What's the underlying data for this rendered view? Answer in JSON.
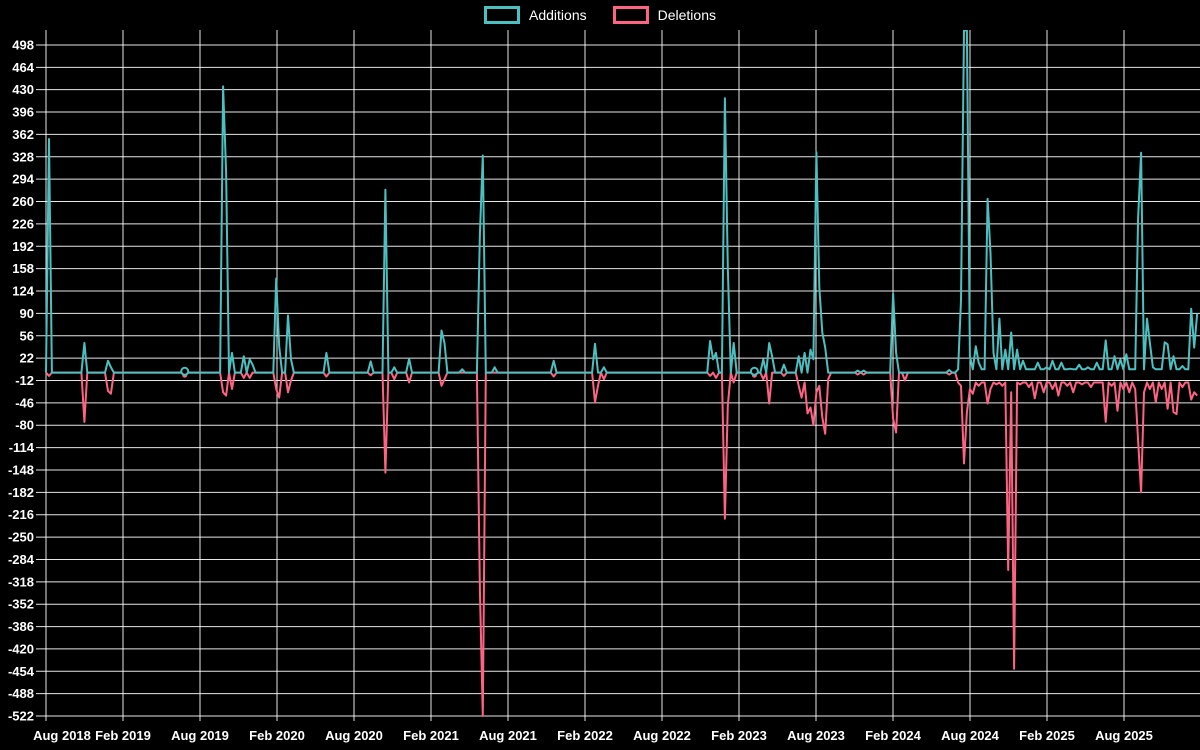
{
  "chart_data": {
    "type": "line",
    "title": "",
    "background_color": "#000000",
    "grid_color": "#ffffff",
    "text_color": "#ffffff",
    "grid": true,
    "legend_position": "top",
    "x_unit": "week",
    "weeks_total": 391,
    "x_range_label": "Aug 2018 - Aug 2025",
    "xtick_labels": [
      "Aug 2018",
      "Feb 2019",
      "Aug 2019",
      "Feb 2020",
      "Aug 2020",
      "Feb 2021",
      "Aug 2021",
      "Feb 2022",
      "Aug 2022",
      "Feb 2023",
      "Aug 2023",
      "Feb 2024",
      "Aug 2024",
      "Feb 2025",
      "Aug 2025"
    ],
    "ytick_labels": [
      498,
      464,
      430,
      396,
      362,
      328,
      294,
      260,
      226,
      192,
      158,
      124,
      90,
      56,
      22,
      -12,
      -46,
      -80,
      -114,
      -148,
      -182,
      -216,
      -250,
      -284,
      -318,
      -352,
      -386,
      -420,
      -454,
      -488,
      -522
    ],
    "ylim": [
      -522,
      498
    ],
    "ytick_step": 34,
    "series": [
      {
        "name": "Additions",
        "color": "#4bc0c0",
        "events": {
          "1": 355,
          "13": 45,
          "21": 18,
          "22": 8,
          "47": 3,
          "60": 435,
          "61": 305,
          "63": 30,
          "67": 25,
          "69": 20,
          "70": 12,
          "78": 143,
          "79": 40,
          "82": 87,
          "83": 20,
          "95": 30,
          "110": 17,
          "115": 278,
          "118": 8,
          "123": 21,
          "134": 64,
          "135": 45,
          "141": 5,
          "147": 210,
          "148": 330,
          "152": 8,
          "172": 18,
          "186": 44,
          "189": 8,
          "225": 48,
          "226": 20,
          "227": 30,
          "230": 417,
          "231": 160,
          "233": 45,
          "240": 3,
          "243": 20,
          "245": 45,
          "246": 25,
          "250": 12,
          "255": 25,
          "257": 30,
          "259": 35,
          "260": 20,
          "261": 335,
          "262": 130,
          "263": 61,
          "264": 38,
          "275": 3,
          "277": 3,
          "287": 120,
          "288": 30,
          "306": 4,
          "310": 110,
          "311": 520,
          "312": 520,
          "313": 25,
          "315": 40,
          "316": 15,
          "319": 264,
          "320": 182,
          "321": 30,
          "323": 82,
          "325": 35,
          "327": 61,
          "329": 35,
          "331": 18,
          "336": 15,
          "339": 8,
          "341": 18,
          "344": 15,
          "347": 6,
          "350": 12,
          "353": 8,
          "356": 15,
          "359": 49,
          "362": 25,
          "364": 20,
          "366": 28,
          "370": 235,
          "371": 334,
          "373": 82,
          "374": 45,
          "375": 8,
          "379": 46,
          "380": 43,
          "382": 25,
          "385": 10,
          "388": 97,
          "389": 38,
          "390": 90
        }
      },
      {
        "name": "Deletions",
        "color": "#ff6384",
        "events": {
          "1": -5,
          "13": -75,
          "21": -28,
          "22": -32,
          "47": -4,
          "60": -30,
          "61": -35,
          "63": -25,
          "67": -8,
          "69": -8,
          "78": -25,
          "79": -38,
          "82": -30,
          "83": -12,
          "95": -6,
          "110": -4,
          "115": -152,
          "118": -10,
          "123": -15,
          "134": -20,
          "135": -10,
          "147": -330,
          "148": -522,
          "172": -6,
          "186": -45,
          "187": -20,
          "189": -10,
          "225": -5,
          "227": -8,
          "230": -222,
          "231": -50,
          "233": -15,
          "240": -4,
          "243": -10,
          "245": -47,
          "250": -5,
          "255": -20,
          "256": -38,
          "257": -15,
          "258": -62,
          "259": -53,
          "260": -80,
          "261": -30,
          "262": -20,
          "263": -68,
          "264": -93,
          "265": -10,
          "275": -3,
          "277": -3,
          "287": -70,
          "288": -91,
          "291": -12,
          "306": -3,
          "310": -20,
          "311": -138,
          "312": -60,
          "313": -25,
          "314": -32,
          "316": -20,
          "319": -47,
          "320": -25,
          "322": -18,
          "324": -20,
          "326": -300,
          "327": -30,
          "328": -450,
          "330": -18,
          "333": -22,
          "335": -39,
          "338": -30,
          "341": -25,
          "343": -35,
          "346": -20,
          "348": -30,
          "351": -18,
          "354": -22,
          "357": -15,
          "359": -75,
          "361": -20,
          "363": -58,
          "365": -25,
          "367": -30,
          "369": -25,
          "370": -103,
          "371": -182,
          "372": -30,
          "374": -25,
          "376": -45,
          "378": -25,
          "380": -55,
          "382": -60,
          "383": -63,
          "385": -22,
          "388": -41,
          "389": -30,
          "390": -35
        }
      }
    ],
    "baseline_bands": [
      {
        "from": 309,
        "to": 390,
        "additions": 5,
        "deletions": -15
      }
    ],
    "isolated_marker_weeks": [
      47,
      240
    ]
  }
}
